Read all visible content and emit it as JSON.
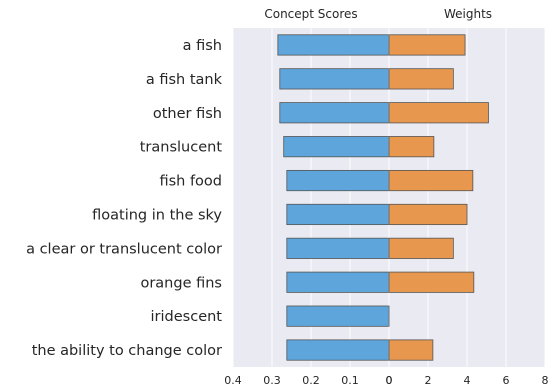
{
  "chart_data": [
    {
      "type": "bar",
      "orientation": "horizontal",
      "title": "Concept Scores",
      "categories": [
        "a fish",
        "a fish tank",
        "other fish",
        "translucent",
        "fish food",
        "floating in the sky",
        "a clear or translucent color",
        "orange fins",
        "iridescent",
        "the ability to change color"
      ],
      "values": [
        0.285,
        0.28,
        0.28,
        0.27,
        0.262,
        0.262,
        0.262,
        0.262,
        0.262,
        0.262
      ],
      "xlim": [
        0.4,
        0
      ],
      "xaxis_reversed": true,
      "xticks": [
        "0.4",
        "0.3",
        "0.2",
        "0.1",
        "0"
      ],
      "grid": true,
      "color": "#5DA5DA"
    },
    {
      "type": "bar",
      "orientation": "horizontal",
      "title": "Weights",
      "categories": [
        "a fish",
        "a fish tank",
        "other fish",
        "translucent",
        "fish food",
        "floating in the sky",
        "a clear or translucent color",
        "orange fins",
        "iridescent",
        "the ability to change color"
      ],
      "values": [
        3.9,
        3.3,
        5.1,
        2.3,
        4.3,
        4.0,
        3.3,
        4.35,
        0.0,
        2.25
      ],
      "xlim": [
        0,
        8
      ],
      "xticks": [
        "0",
        "2",
        "4",
        "6",
        "8"
      ],
      "grid": true,
      "color": "#E8974F"
    }
  ],
  "colors": {
    "panel_background": "#EAEAF2",
    "gridline": "#ffffff",
    "scores_bar": "#5DA5DA",
    "weights_bar": "#E8974F",
    "bar_edge": "#555555"
  }
}
